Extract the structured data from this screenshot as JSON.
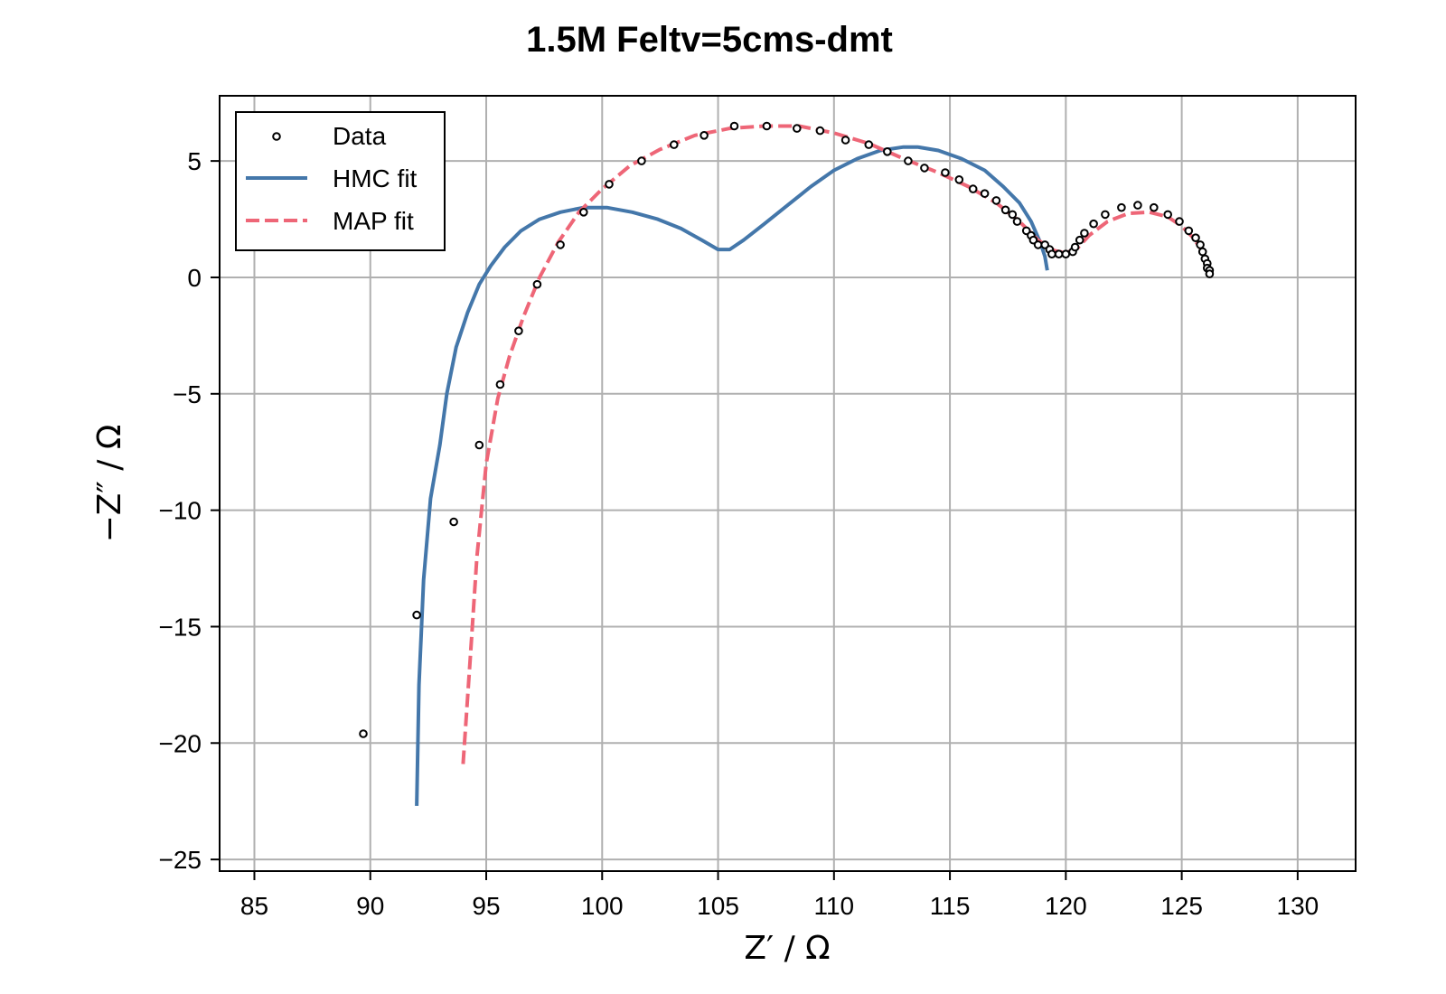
{
  "chart_data": {
    "type": "scatter",
    "title": "1.5M Feltv=5cms-dmt",
    "xlabel": "Z′ / Ω",
    "ylabel": "−Z″ / Ω",
    "xlim": [
      83.5,
      132.5
    ],
    "ylim": [
      -25.5,
      7.8
    ],
    "xticks": [
      85,
      90,
      95,
      100,
      105,
      110,
      115,
      120,
      125,
      130
    ],
    "yticks": [
      5,
      0,
      -5,
      -10,
      -15,
      -20,
      -25
    ],
    "xtick_labels": [
      "85",
      "90",
      "95",
      "100",
      "105",
      "110",
      "115",
      "120",
      "125",
      "130"
    ],
    "ytick_labels": [
      "5",
      "0",
      "−5",
      "−10",
      "−15",
      "−20",
      "−25"
    ],
    "grid": true,
    "legend_position": "top-left",
    "colors": {
      "data_edge": "#000000",
      "hmc": "#4477aa",
      "map": "#ee6677",
      "grid": "#b0b0b0"
    },
    "series": [
      {
        "name": "Data",
        "kind": "scatter",
        "points": [
          [
            89.7,
            -19.6
          ],
          [
            92.0,
            -14.5
          ],
          [
            93.6,
            -10.5
          ],
          [
            94.7,
            -7.2
          ],
          [
            95.6,
            -4.6
          ],
          [
            96.4,
            -2.3
          ],
          [
            97.2,
            -0.3
          ],
          [
            98.2,
            1.4
          ],
          [
            99.2,
            2.8
          ],
          [
            100.3,
            4.0
          ],
          [
            101.7,
            5.0
          ],
          [
            103.1,
            5.7
          ],
          [
            104.4,
            6.1
          ],
          [
            105.7,
            6.5
          ],
          [
            107.1,
            6.5
          ],
          [
            108.4,
            6.4
          ],
          [
            109.4,
            6.3
          ],
          [
            110.5,
            5.9
          ],
          [
            111.5,
            5.7
          ],
          [
            112.3,
            5.4
          ],
          [
            113.2,
            5.0
          ],
          [
            113.9,
            4.7
          ],
          [
            114.8,
            4.5
          ],
          [
            115.4,
            4.2
          ],
          [
            116.0,
            3.8
          ],
          [
            116.5,
            3.6
          ],
          [
            117.0,
            3.3
          ],
          [
            117.4,
            2.9
          ],
          [
            117.7,
            2.7
          ],
          [
            117.9,
            2.4
          ],
          [
            118.3,
            2.0
          ],
          [
            118.5,
            1.8
          ],
          [
            118.6,
            1.6
          ],
          [
            118.8,
            1.4
          ],
          [
            119.1,
            1.4
          ],
          [
            119.3,
            1.2
          ],
          [
            119.4,
            1.0
          ],
          [
            119.7,
            1.0
          ],
          [
            120.0,
            1.0
          ],
          [
            120.3,
            1.1
          ],
          [
            120.4,
            1.3
          ],
          [
            120.6,
            1.6
          ],
          [
            120.8,
            1.9
          ],
          [
            121.2,
            2.3
          ],
          [
            121.7,
            2.7
          ],
          [
            122.4,
            3.0
          ],
          [
            123.1,
            3.1
          ],
          [
            123.8,
            3.0
          ],
          [
            124.4,
            2.7
          ],
          [
            124.9,
            2.4
          ],
          [
            125.3,
            2.0
          ],
          [
            125.6,
            1.7
          ],
          [
            125.8,
            1.4
          ],
          [
            125.9,
            1.1
          ],
          [
            126.0,
            0.8
          ],
          [
            126.1,
            0.6
          ],
          [
            126.1,
            0.4
          ],
          [
            126.2,
            0.3
          ],
          [
            126.2,
            0.15
          ]
        ]
      },
      {
        "name": "HMC fit",
        "kind": "line",
        "points": [
          [
            92.0,
            -22.7
          ],
          [
            92.1,
            -17.5
          ],
          [
            92.3,
            -13.0
          ],
          [
            92.6,
            -9.5
          ],
          [
            93.0,
            -7.2
          ],
          [
            93.3,
            -5.0
          ],
          [
            93.7,
            -3.0
          ],
          [
            94.2,
            -1.5
          ],
          [
            94.7,
            -0.3
          ],
          [
            95.2,
            0.5
          ],
          [
            95.8,
            1.3
          ],
          [
            96.5,
            2.0
          ],
          [
            97.3,
            2.5
          ],
          [
            98.2,
            2.8
          ],
          [
            99.2,
            3.0
          ],
          [
            100.2,
            3.0
          ],
          [
            101.3,
            2.8
          ],
          [
            102.4,
            2.5
          ],
          [
            103.4,
            2.1
          ],
          [
            104.3,
            1.6
          ],
          [
            105.0,
            1.2
          ],
          [
            105.5,
            1.2
          ],
          [
            106.1,
            1.6
          ],
          [
            107.0,
            2.3
          ],
          [
            108.0,
            3.1
          ],
          [
            109.0,
            3.9
          ],
          [
            110.0,
            4.6
          ],
          [
            111.0,
            5.1
          ],
          [
            112.0,
            5.45
          ],
          [
            113.0,
            5.6
          ],
          [
            113.6,
            5.6
          ],
          [
            114.5,
            5.45
          ],
          [
            115.5,
            5.1
          ],
          [
            116.5,
            4.6
          ],
          [
            117.3,
            3.9
          ],
          [
            118.0,
            3.2
          ],
          [
            118.5,
            2.4
          ],
          [
            118.9,
            1.5
          ],
          [
            119.1,
            0.9
          ],
          [
            119.2,
            0.3
          ]
        ]
      },
      {
        "name": "MAP fit",
        "kind": "line",
        "dashed": true,
        "points": [
          [
            94.0,
            -20.9
          ],
          [
            94.3,
            -16.5
          ],
          [
            94.6,
            -12.0
          ],
          [
            95.0,
            -8.0
          ],
          [
            95.5,
            -5.2
          ],
          [
            96.0,
            -3.4
          ],
          [
            96.6,
            -1.7
          ],
          [
            97.3,
            0.0
          ],
          [
            98.1,
            1.5
          ],
          [
            99.0,
            2.8
          ],
          [
            100.0,
            3.8
          ],
          [
            101.2,
            4.8
          ],
          [
            102.5,
            5.5
          ],
          [
            104.0,
            6.1
          ],
          [
            105.5,
            6.4
          ],
          [
            107.0,
            6.5
          ],
          [
            108.5,
            6.5
          ],
          [
            110.0,
            6.2
          ],
          [
            111.5,
            5.75
          ],
          [
            113.0,
            5.1
          ],
          [
            114.5,
            4.5
          ],
          [
            115.8,
            3.9
          ],
          [
            117.0,
            3.2
          ],
          [
            118.0,
            2.4
          ],
          [
            118.8,
            1.6
          ],
          [
            119.5,
            1.15
          ],
          [
            120.0,
            1.05
          ],
          [
            120.5,
            1.25
          ],
          [
            121.0,
            1.8
          ],
          [
            121.8,
            2.4
          ],
          [
            122.7,
            2.75
          ],
          [
            123.6,
            2.8
          ],
          [
            124.4,
            2.6
          ],
          [
            125.0,
            2.2
          ],
          [
            125.5,
            1.7
          ],
          [
            125.9,
            1.1
          ],
          [
            126.1,
            0.6
          ],
          [
            126.2,
            0.2
          ]
        ]
      }
    ]
  }
}
